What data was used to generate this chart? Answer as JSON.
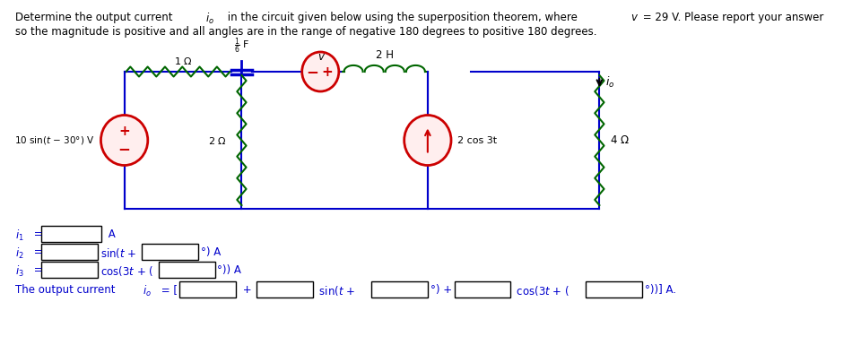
{
  "title_line1": "Determine the output current ",
  "title_io": "i",
  "title_o_sub": "o",
  "title_line1_rest": " in the circuit given below using the superposition theorem, where v = 29 V. Please report your answer",
  "title_line2": "so the magnitude is positive and all angles are in the range of negative 180 degrees to positive 180 degrees.",
  "circuit_color": "#0000cc",
  "component_color": "#cc0000",
  "wire_color": "#006600",
  "text_color": "#0000cc",
  "bg_color": "#ffffff",
  "answer_line1": "i₁ =        A",
  "answer_line2": "i₂ =        sin(t +        °) A",
  "answer_line3": "i₃ =        cos(3t + (        °)) A",
  "answer_line4": "The output current i₀ = [        +        sin(t +        °) +        cos(3t + (        °))] A."
}
